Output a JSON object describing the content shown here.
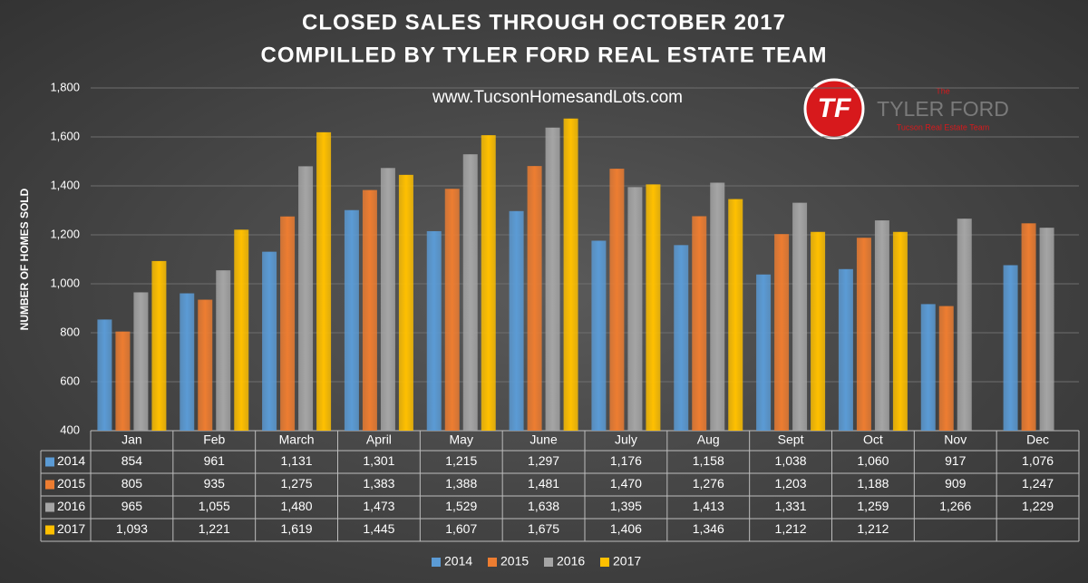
{
  "chart_data": {
    "type": "bar",
    "title": [
      "CLOSED SALES THROUGH OCTOBER 2017",
      "COMPILLED BY TYLER FORD REAL ESTATE TEAM"
    ],
    "ylabel": "NUMBER OF HOMES SOLD",
    "watermark": "www.TucsonHomesandLots.com",
    "logo": {
      "mark": "TF",
      "small": "The",
      "name": "TYLER FORD",
      "tagline": "Tucson Real Estate Team"
    },
    "categories": [
      "Jan",
      "Feb",
      "March",
      "April",
      "May",
      "June",
      "July",
      "Aug",
      "Sept",
      "Oct",
      "Nov",
      "Dec"
    ],
    "series": [
      {
        "name": "2014",
        "color": "#5b9bd5",
        "values": [
          854,
          961,
          1131,
          1301,
          1215,
          1297,
          1176,
          1158,
          1038,
          1060,
          917,
          1076
        ],
        "value_labels": [
          "854",
          "961",
          "1,131",
          "1,301",
          "1,215",
          "1,297",
          "1,176",
          "1,158",
          "1,038",
          "1,060",
          "917",
          "1,076"
        ]
      },
      {
        "name": "2015",
        "color": "#ed7d31",
        "values": [
          805,
          935,
          1275,
          1383,
          1388,
          1481,
          1470,
          1276,
          1203,
          1188,
          909,
          1247
        ],
        "value_labels": [
          "805",
          "935",
          "1,275",
          "1,383",
          "1,388",
          "1,481",
          "1,470",
          "1,276",
          "1,203",
          "1,188",
          "909",
          "1,247"
        ]
      },
      {
        "name": "2016",
        "color": "#a5a5a5",
        "values": [
          965,
          1055,
          1480,
          1473,
          1529,
          1638,
          1395,
          1413,
          1331,
          1259,
          1266,
          1229
        ],
        "value_labels": [
          "965",
          "1,055",
          "1,480",
          "1,473",
          "1,529",
          "1,638",
          "1,395",
          "1,413",
          "1,331",
          "1,259",
          "1,266",
          "1,229"
        ]
      },
      {
        "name": "2017",
        "color": "#ffc000",
        "values": [
          1093,
          1221,
          1619,
          1445,
          1607,
          1675,
          1406,
          1346,
          1212,
          1212,
          null,
          null
        ],
        "value_labels": [
          "1,093",
          "1,221",
          "1,619",
          "1,445",
          "1,607",
          "1,675",
          "1,406",
          "1,346",
          "1,212",
          "1,212",
          null,
          null
        ]
      }
    ],
    "ylim": [
      400,
      1800
    ],
    "yticks": [
      400,
      600,
      800,
      {
        "value": 1000,
        "label": "1,000"
      },
      {
        "value": 1200,
        "label": "1,200"
      },
      {
        "value": 1400,
        "label": "1,400"
      },
      {
        "value": 1600,
        "label": "1,600"
      },
      {
        "value": 1800,
        "label": "1,800"
      }
    ],
    "grid": true,
    "legend": "bottom"
  }
}
